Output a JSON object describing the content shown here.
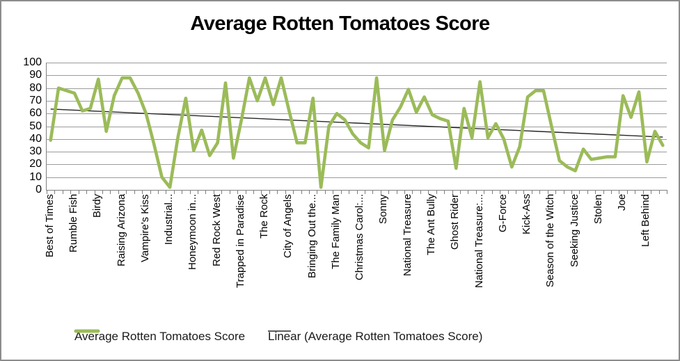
{
  "title": "Average Rotten Tomatoes Score",
  "legend": {
    "series_label": "Average Rotten Tomatoes Score",
    "trend_label": "Linear (Average Rotten Tomatoes Score)"
  },
  "colors": {
    "series": "#9bbb59",
    "trend": "#262626",
    "gridline": "#9b9b9b",
    "axis": "#7f7f7f",
    "text": "#000000",
    "border": "#8c8c8c"
  },
  "chart_data": {
    "type": "line",
    "title": "Average Rotten Tomatoes Score",
    "xlabel": "",
    "ylabel": "",
    "ylim": [
      0,
      100
    ],
    "y_ticks": [
      0,
      10,
      20,
      30,
      40,
      50,
      60,
      70,
      80,
      90,
      100
    ],
    "grid": true,
    "legend_position": "bottom",
    "label_every": 3,
    "tick_labels": [
      "Best of Times",
      "Rumble Fish",
      "Birdy",
      "Raising Arizona",
      "Vampire's Kiss",
      "Industrial...",
      "Honeymoon in...",
      "Red Rock West",
      "Trapped in Paradise",
      "The Rock",
      "City of Angels",
      "Bringing Out the...",
      "The Family Man",
      "Christmas Carol:...",
      "Sonny",
      "National Treasure",
      "The Ant Bully",
      "Ghost Rider",
      "National Treasure:...",
      "G-Force",
      "Kick-Ass",
      "Season of the Witch",
      "Seeking Justice",
      "Stolen",
      "Joe",
      "Left Behind"
    ],
    "series": [
      {
        "name": "Average Rotten Tomatoes Score",
        "values": [
          39,
          80,
          78,
          76,
          62,
          64,
          87,
          46,
          74,
          88,
          88,
          76,
          60,
          36,
          10,
          2,
          41,
          72,
          31,
          47,
          27,
          37,
          84,
          25,
          55,
          88,
          70,
          88,
          67,
          88,
          62,
          37,
          37,
          72,
          2,
          50,
          60,
          55,
          44,
          37,
          33,
          88,
          31,
          55,
          65,
          79,
          61,
          73,
          59,
          56,
          54,
          17,
          64,
          41,
          85,
          41,
          52,
          40,
          18,
          34,
          73,
          78,
          78,
          50,
          23,
          18,
          15,
          32,
          24,
          25,
          26,
          26,
          74,
          57,
          77,
          22,
          46,
          35
        ]
      },
      {
        "name": "Linear (Average Rotten Tomatoes Score)",
        "type": "trendline",
        "start_value": 63.5,
        "end_value": 41.5
      }
    ]
  }
}
